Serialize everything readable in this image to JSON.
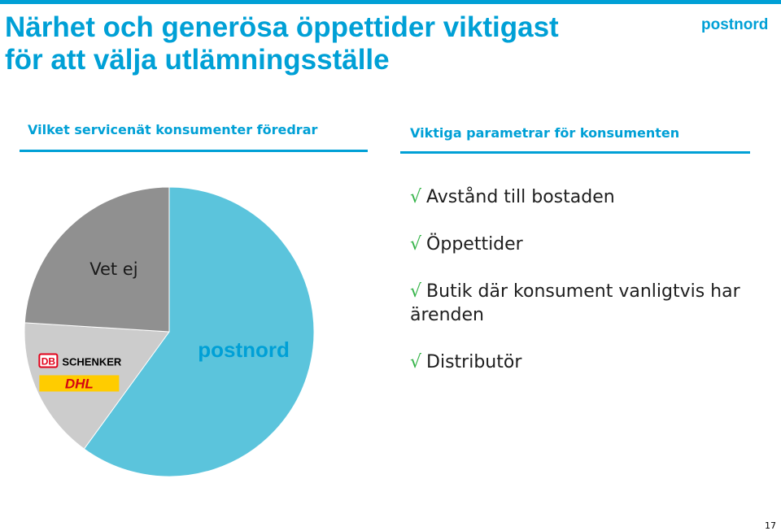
{
  "slide": {
    "title_line1": "Närhet och generösa öppettider viktigast",
    "title_line2": "för att välja utlämningsställe",
    "brand_logo_text": "postnord",
    "left_heading": "Vilket servicenät konsumenter föredrar",
    "right_heading": "Viktiga parametrar för konsumenten",
    "check_mark": "√",
    "bullets": [
      {
        "text": "Avstånd till bostaden"
      },
      {
        "text": "Öppettider"
      },
      {
        "text": "Butik där konsument vanligtvis har ärenden"
      },
      {
        "text": "Distributör"
      }
    ],
    "page_number": "17"
  },
  "chart_data": {
    "type": "pie",
    "start_angle_deg": 0,
    "direction": "clockwise",
    "slices": [
      {
        "label": "postnord",
        "value": 60,
        "color": "#5bc4dc",
        "label_type": "logo"
      },
      {
        "label": "DB SCHENKER / DHL",
        "value": 16,
        "color": "#cccccc",
        "label_type": "logo"
      },
      {
        "label": "Vet ej",
        "value": 24,
        "color": "#909090",
        "label_type": "text"
      }
    ],
    "colors": {
      "accent": "#00a0d6",
      "check": "#36b44a",
      "schenker_red": "#e2001a",
      "dhl_yellow": "#ffcc00",
      "dhl_red": "#d40511"
    }
  }
}
